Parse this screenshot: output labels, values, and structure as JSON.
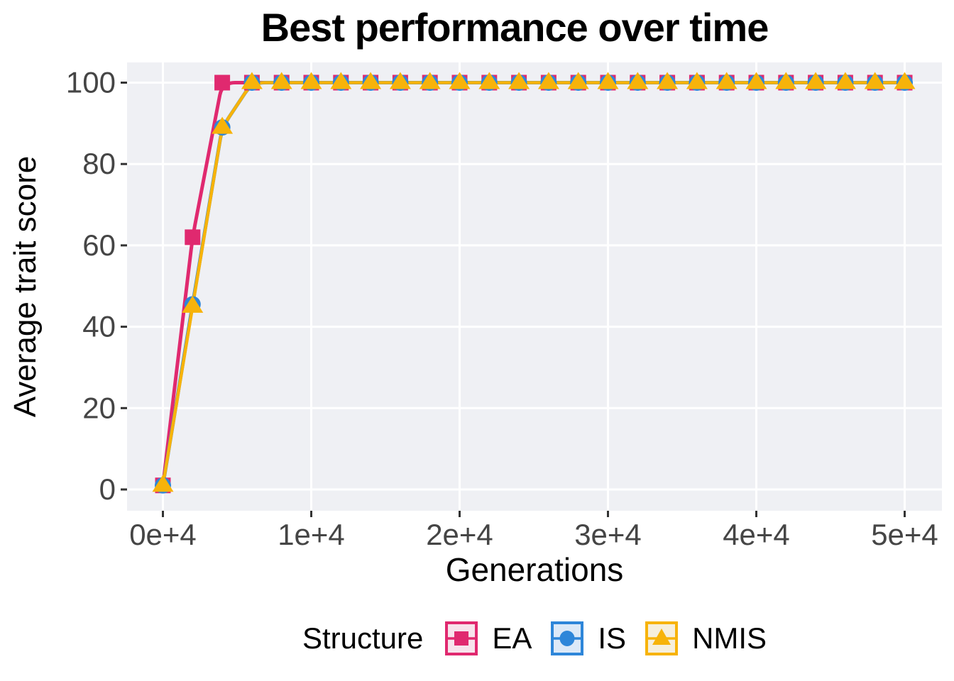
{
  "chart_data": {
    "type": "line",
    "title": "Best performance over time",
    "xlabel": "Generations",
    "ylabel": "Average trait score",
    "legend_title": "Structure",
    "legend_position": "bottom",
    "x_ticks": [
      0,
      10000,
      20000,
      30000,
      40000,
      50000
    ],
    "x_tick_labels": [
      "0e+4",
      "1e+4",
      "2e+4",
      "3e+4",
      "4e+4",
      "5e+4"
    ],
    "y_ticks": [
      0,
      20,
      40,
      60,
      80,
      100
    ],
    "y_tick_labels": [
      "0",
      "20",
      "40",
      "60",
      "80",
      "100"
    ],
    "xlim": [
      -2420,
      52600
    ],
    "ylim": [
      -5.1,
      105.2
    ],
    "grid": "major-only-white",
    "x": [
      0,
      2000,
      4000,
      6000,
      8000,
      10000,
      12000,
      14000,
      16000,
      18000,
      20000,
      22000,
      24000,
      26000,
      28000,
      30000,
      32000,
      34000,
      36000,
      38000,
      40000,
      42000,
      44000,
      46000,
      48000,
      50000
    ],
    "series": [
      {
        "name": "EA",
        "marker": "square",
        "color": "#E0296F",
        "key_bg": "#F7E3EC",
        "values": [
          1,
          62,
          100,
          100,
          100,
          100,
          100,
          100,
          100,
          100,
          100,
          100,
          100,
          100,
          100,
          100,
          100,
          100,
          100,
          100,
          100,
          100,
          100,
          100,
          100,
          100
        ]
      },
      {
        "name": "IS",
        "marker": "circle",
        "color": "#2E86D9",
        "key_bg": "#DCE9F8",
        "values": [
          1,
          45.5,
          89,
          100,
          100,
          100,
          100,
          100,
          100,
          100,
          100,
          100,
          100,
          100,
          100,
          100,
          100,
          100,
          100,
          100,
          100,
          100,
          100,
          100,
          100,
          100
        ]
      },
      {
        "name": "NMIS",
        "marker": "triangle",
        "color": "#F7B30A",
        "key_bg": "#F6EFDC",
        "values": [
          1,
          45,
          89,
          100,
          100,
          100,
          100,
          100,
          100,
          100,
          100,
          100,
          100,
          100,
          100,
          100,
          100,
          100,
          100,
          100,
          100,
          100,
          100,
          100,
          100,
          100
        ]
      }
    ],
    "colors": {
      "plot_background": "#EFF0F4",
      "grid": "#FFFFFF",
      "tick_mark": "#333333",
      "tick_label": "#454545",
      "text": "#000000"
    }
  }
}
